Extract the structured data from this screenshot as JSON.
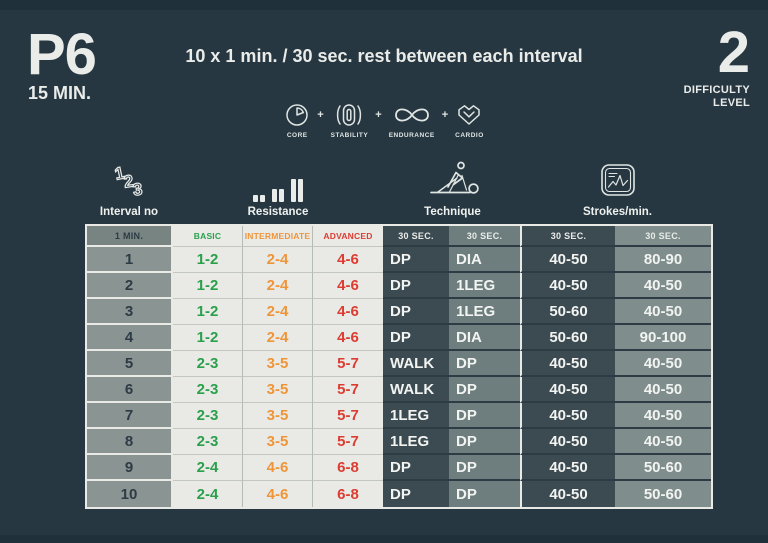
{
  "header": {
    "program_code": "P6",
    "program_duration": "15 MIN.",
    "session_summary": "10 x 1 min. / 30 sec. rest between each interval",
    "difficulty_value": "2",
    "difficulty_label": [
      "DIFFICULTY",
      "LEVEL"
    ]
  },
  "focus": {
    "separator": "+",
    "items": [
      {
        "icon": "core-icon",
        "label": "CORE"
      },
      {
        "icon": "stability-icon",
        "label": "STABILITY"
      },
      {
        "icon": "endurance-icon",
        "label": "ENDURANCE"
      },
      {
        "icon": "cardio-icon",
        "label": "CARDIO"
      }
    ]
  },
  "table": {
    "groups": [
      {
        "icon": "interval-123-icon",
        "label": "Interval no"
      },
      {
        "icon": "resistance-bars-icon",
        "label": "Resistance"
      },
      {
        "icon": "skier-icon",
        "label": "Technique"
      },
      {
        "icon": "stroke-monitor-icon",
        "label": "Strokes/min."
      }
    ],
    "subheaders": [
      "1 MIN.",
      "BASIC",
      "INTERMEDIATE",
      "ADVANCED",
      "30 SEC.",
      "30 SEC.",
      "30 SEC.",
      "30 SEC."
    ],
    "columns_keys": [
      "interval",
      "basic",
      "intermediate",
      "advanced",
      "technique_a",
      "technique_b",
      "strokes_a",
      "strokes_b"
    ],
    "rows": [
      {
        "interval": "1",
        "basic": "1-2",
        "intermediate": "2-4",
        "advanced": "4-6",
        "technique_a": "DP",
        "technique_b": "DIA",
        "strokes_a": "40-50",
        "strokes_b": "80-90"
      },
      {
        "interval": "2",
        "basic": "1-2",
        "intermediate": "2-4",
        "advanced": "4-6",
        "technique_a": "DP",
        "technique_b": "1LEG",
        "strokes_a": "40-50",
        "strokes_b": "40-50"
      },
      {
        "interval": "3",
        "basic": "1-2",
        "intermediate": "2-4",
        "advanced": "4-6",
        "technique_a": "DP",
        "technique_b": "1LEG",
        "strokes_a": "50-60",
        "strokes_b": "40-50"
      },
      {
        "interval": "4",
        "basic": "1-2",
        "intermediate": "2-4",
        "advanced": "4-6",
        "technique_a": "DP",
        "technique_b": "DIA",
        "strokes_a": "50-60",
        "strokes_b": "90-100"
      },
      {
        "interval": "5",
        "basic": "2-3",
        "intermediate": "3-5",
        "advanced": "5-7",
        "technique_a": "WALK",
        "technique_b": "DP",
        "strokes_a": "40-50",
        "strokes_b": "40-50"
      },
      {
        "interval": "6",
        "basic": "2-3",
        "intermediate": "3-5",
        "advanced": "5-7",
        "technique_a": "WALK",
        "technique_b": "DP",
        "strokes_a": "40-50",
        "strokes_b": "40-50"
      },
      {
        "interval": "7",
        "basic": "2-3",
        "intermediate": "3-5",
        "advanced": "5-7",
        "technique_a": "1LEG",
        "technique_b": "DP",
        "strokes_a": "40-50",
        "strokes_b": "40-50"
      },
      {
        "interval": "8",
        "basic": "2-3",
        "intermediate": "3-5",
        "advanced": "5-7",
        "technique_a": "1LEG",
        "technique_b": "DP",
        "strokes_a": "40-50",
        "strokes_b": "40-50"
      },
      {
        "interval": "9",
        "basic": "2-4",
        "intermediate": "4-6",
        "advanced": "6-8",
        "technique_a": "DP",
        "technique_b": "DP",
        "strokes_a": "40-50",
        "strokes_b": "50-60"
      },
      {
        "interval": "10",
        "basic": "2-4",
        "intermediate": "4-6",
        "advanced": "6-8",
        "technique_a": "DP",
        "technique_b": "DP",
        "strokes_a": "40-50",
        "strokes_b": "50-60"
      }
    ],
    "icon_digits": [
      "1",
      "2",
      "3"
    ]
  },
  "colors": {
    "background": "#273741",
    "panel_light": "#e9eae6",
    "cell_gray": "#8a9492",
    "cell_dark": "#3c4a52",
    "cell_medium": "#6e7d7e",
    "cell_medium_light": "#7f8e8c",
    "accent_green": "#2aa04c",
    "accent_orange": "#ef9539",
    "accent_red": "#dc3c31"
  }
}
